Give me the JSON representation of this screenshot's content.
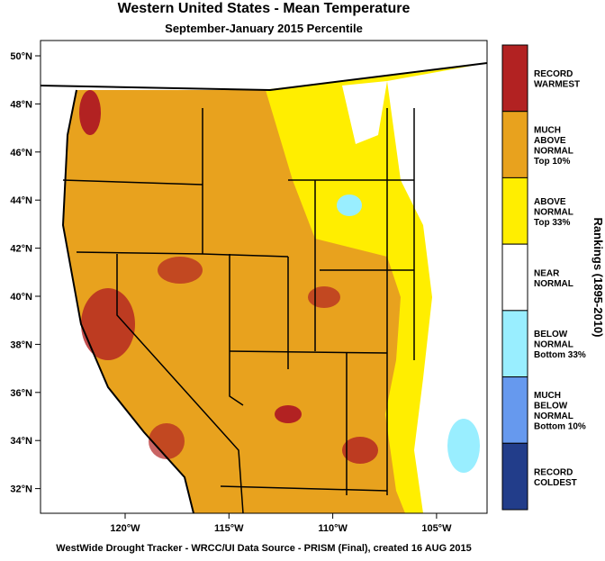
{
  "header": {
    "title": "Western United States - Mean Temperature",
    "subtitle": "September-January 2015 Percentile"
  },
  "lat_labels": [
    "50°N",
    "48°N",
    "46°N",
    "44°N",
    "42°N",
    "40°N",
    "38°N",
    "36°N",
    "34°N",
    "32°N"
  ],
  "lon_labels": [
    "120°W",
    "115°W",
    "110°W",
    "105°W"
  ],
  "legend": {
    "title": "Rankings (1895-2010)",
    "items": [
      {
        "lines": [
          "RECORD",
          "WARMEST"
        ],
        "color": "#b22222"
      },
      {
        "lines": [
          "MUCH",
          "ABOVE",
          "NORMAL",
          "Top 10%"
        ],
        "color": "#e8a21e"
      },
      {
        "lines": [
          "ABOVE",
          "NORMAL",
          "Top 33%"
        ],
        "color": "#ffee00"
      },
      {
        "lines": [
          "NEAR",
          "NORMAL"
        ],
        "color": "#ffffff"
      },
      {
        "lines": [
          "BELOW",
          "NORMAL",
          "Bottom 33%"
        ],
        "color": "#99eeff"
      },
      {
        "lines": [
          "MUCH",
          "BELOW",
          "NORMAL",
          "Bottom 10%"
        ],
        "color": "#6699ee"
      },
      {
        "lines": [
          "RECORD",
          "COLDEST"
        ],
        "color": "#223d8a"
      }
    ]
  },
  "footer": "WestWide Drought Tracker - WRCC/UI  Data Source - PRISM (Final), created 16 AUG 2015"
}
